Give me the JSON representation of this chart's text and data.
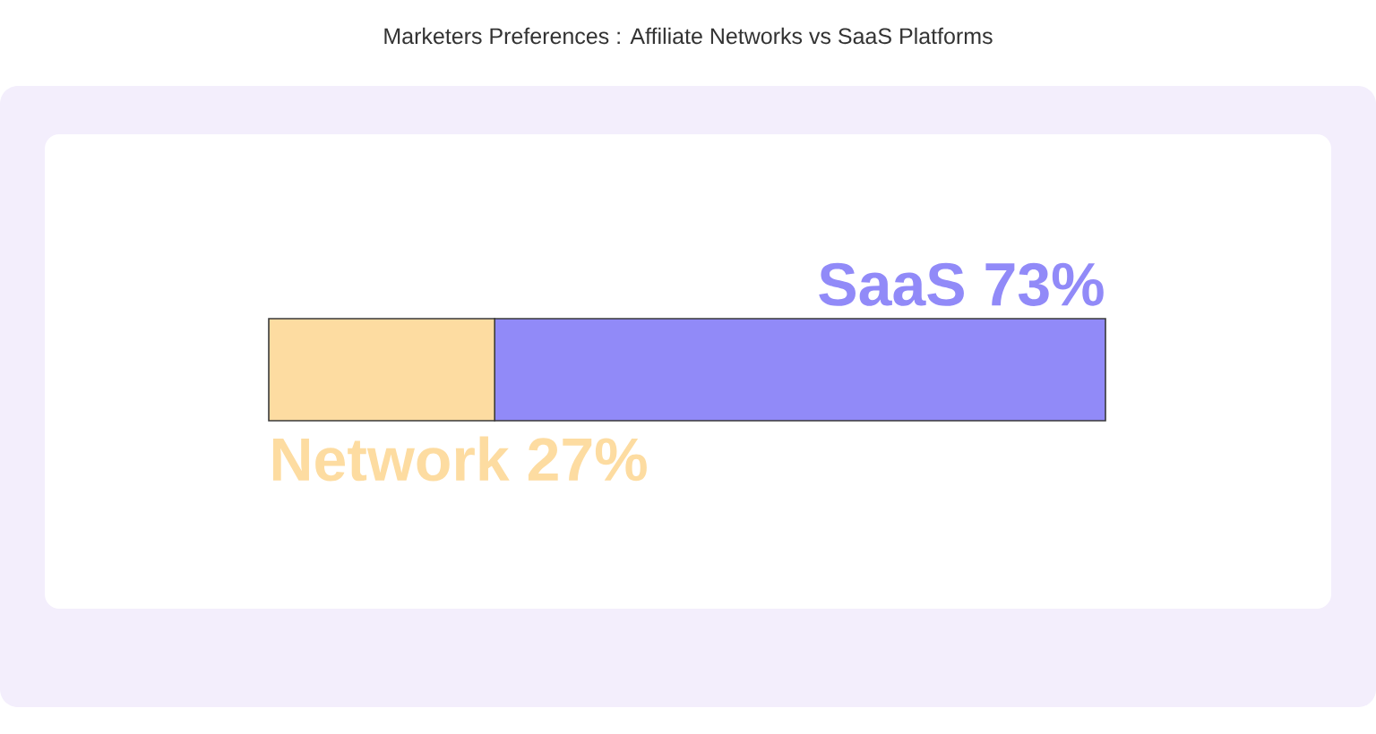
{
  "chart_data": {
    "type": "bar",
    "title": "Marketers Preferences :  Affiliate Networks vs SaaS Platforms",
    "orientation": "horizontal",
    "stacked": true,
    "categories": [
      null
    ],
    "series": [
      {
        "name": "Network",
        "color": "#fddca1",
        "values": [
          27
        ],
        "value_labels": [
          "27%"
        ]
      },
      {
        "name": "SaaS",
        "color": "#918af8",
        "values": [
          73
        ],
        "value_labels": [
          "73%"
        ]
      }
    ]
  }
}
